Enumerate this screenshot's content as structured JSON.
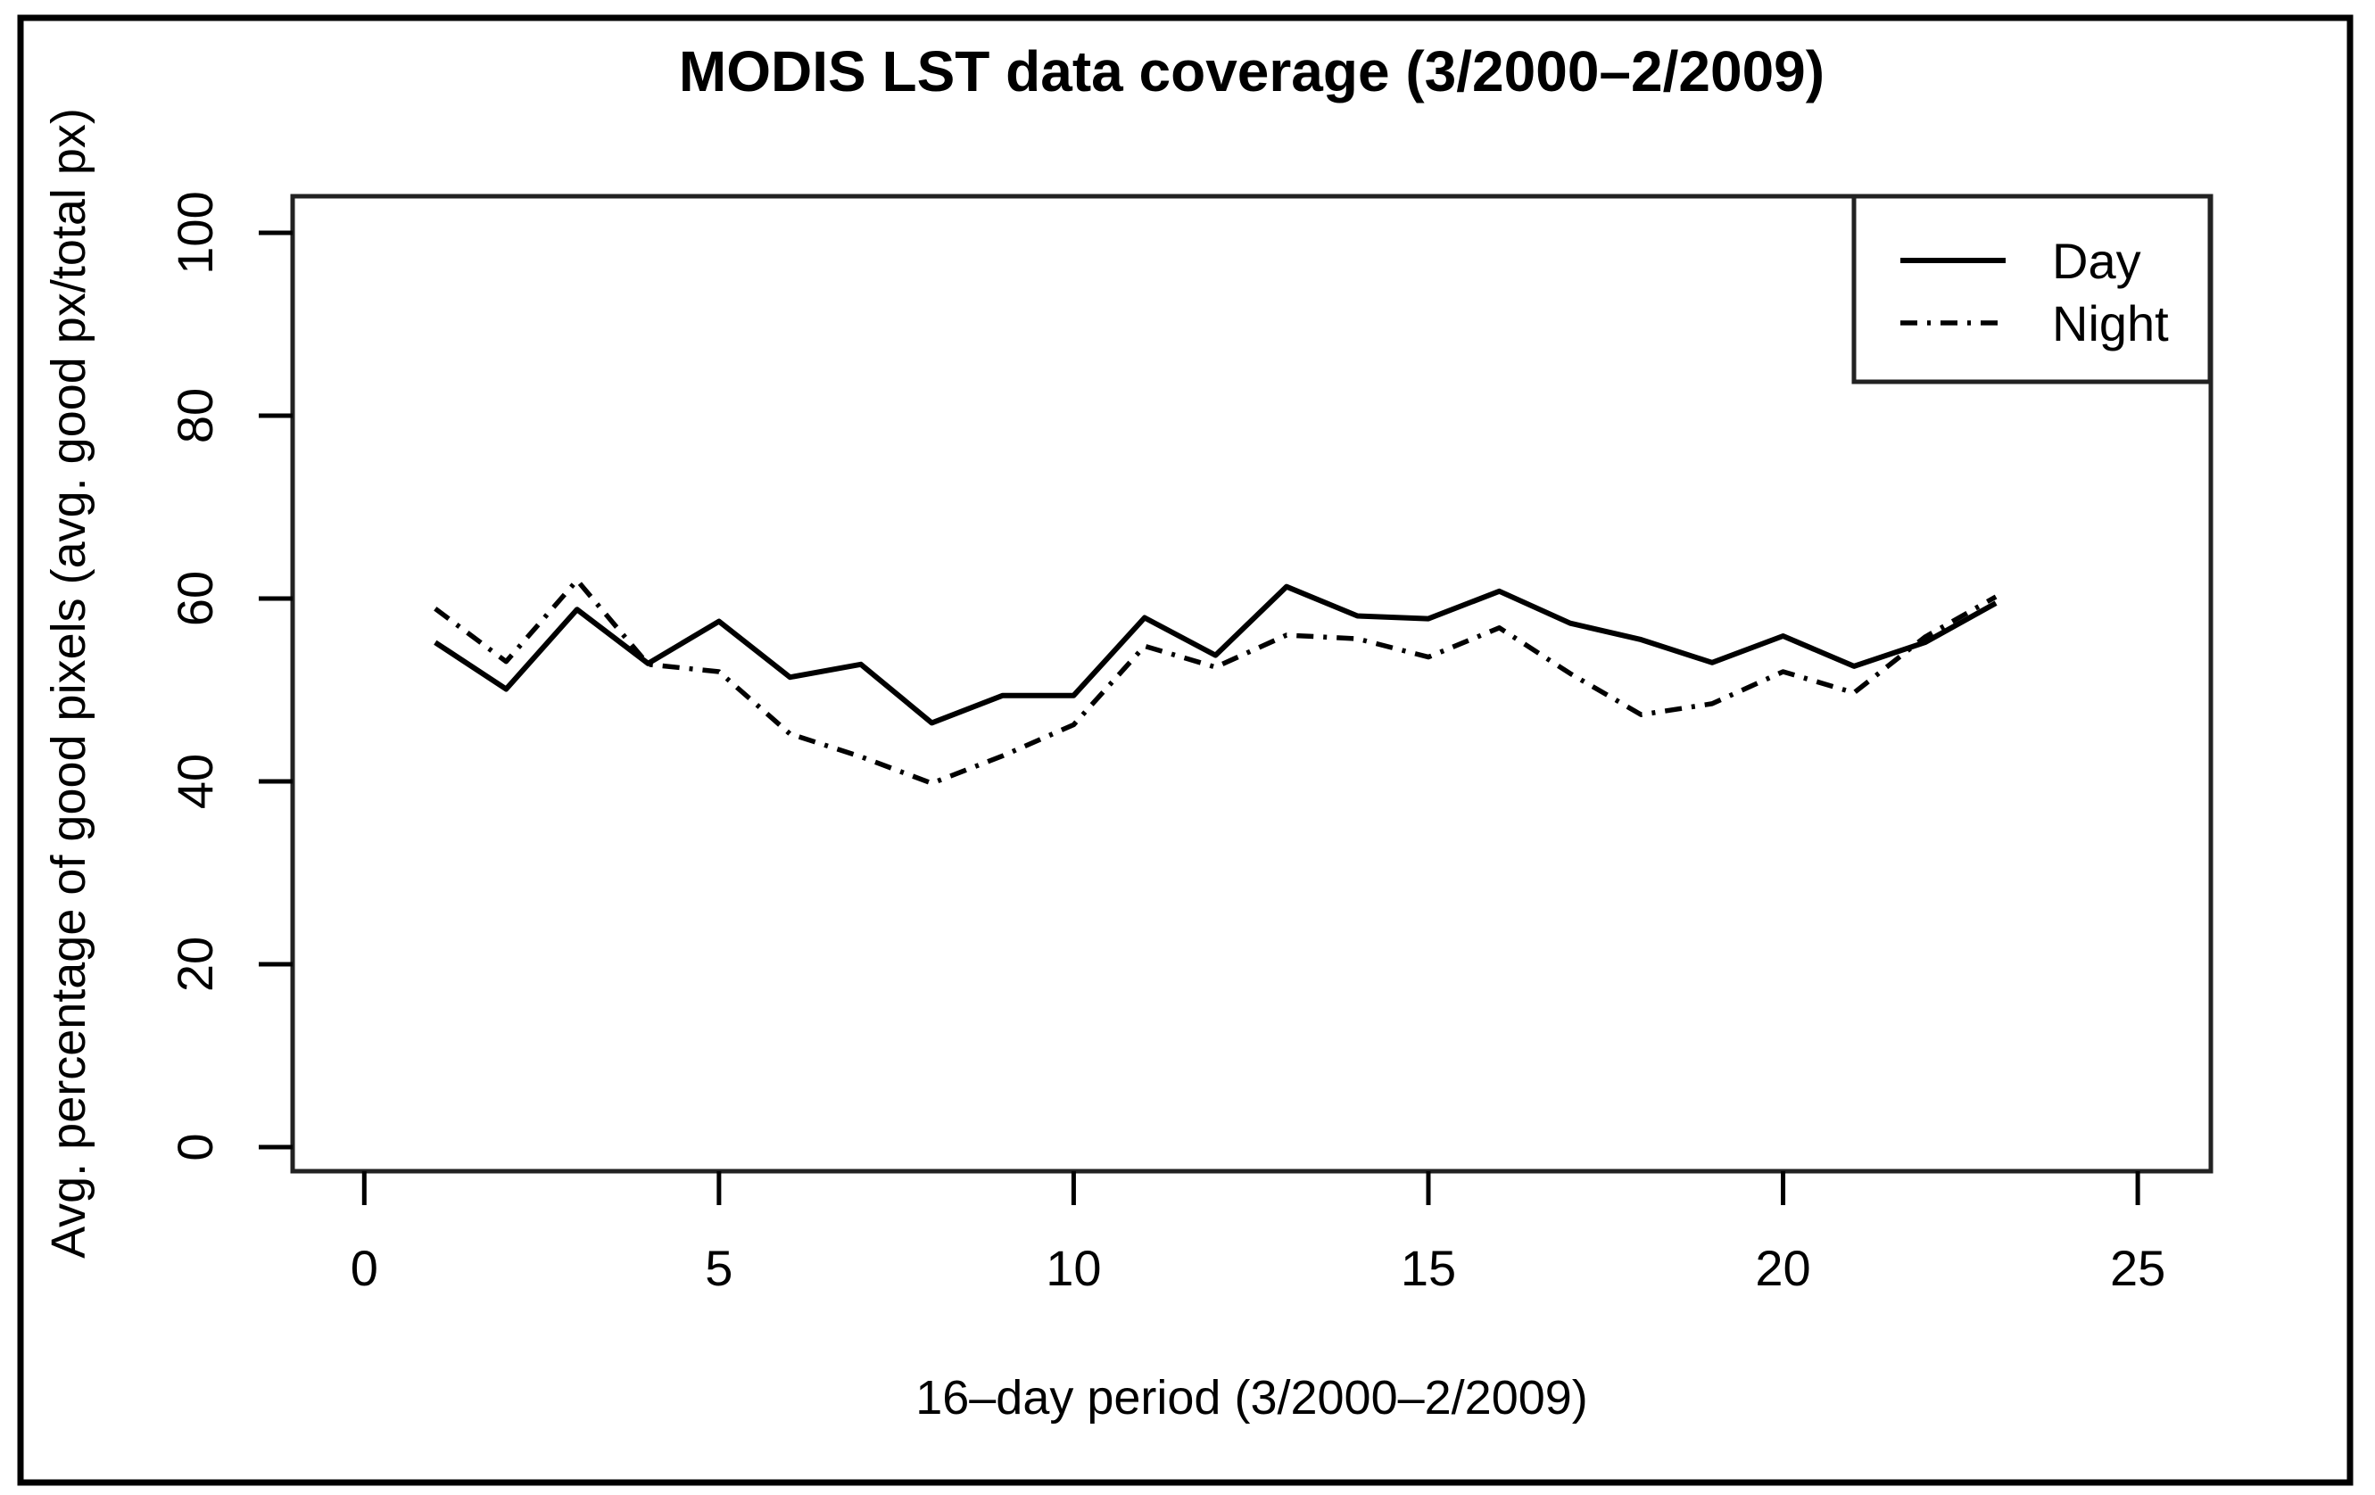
{
  "figure": {
    "background": "#ffffff",
    "frame_color": "#000000",
    "plot_border_color": "#222222"
  },
  "chart_data": {
    "type": "line",
    "title": "MODIS LST data coverage (3/2000–2/2009)",
    "xlabel": "16–day period (3/2000–2/2009)",
    "ylabel": "Avg. percentage of good pixels (avg. good px/total px)",
    "xlim": [
      0,
      25
    ],
    "ylim": [
      0,
      100
    ],
    "x_ticks": [
      0,
      5,
      10,
      15,
      20,
      25
    ],
    "y_ticks": [
      0,
      20,
      40,
      60,
      80,
      100
    ],
    "grid": false,
    "legend_position": "top-right",
    "x": [
      1,
      2,
      3,
      4,
      5,
      6,
      7,
      8,
      9,
      10,
      11,
      12,
      13,
      14,
      15,
      16,
      17,
      18,
      19,
      20,
      21,
      22,
      23
    ],
    "series": [
      {
        "name": "Day",
        "style": "solid",
        "color": "#000000",
        "values": [
          55.2,
          50.1,
          58.8,
          52.9,
          57.5,
          51.4,
          52.8,
          46.4,
          49.4,
          49.4,
          57.9,
          53.8,
          61.3,
          58.1,
          57.8,
          60.8,
          57.3,
          55.5,
          53.0,
          55.9,
          52.6,
          55.2,
          59.5
        ]
      },
      {
        "name": "Night",
        "style": "dashdot",
        "color": "#000000",
        "values": [
          58.9,
          53.1,
          62.0,
          52.8,
          52.0,
          45.2,
          42.7,
          39.8,
          42.8,
          46.2,
          54.8,
          52.5,
          56.0,
          55.6,
          53.6,
          56.8,
          51.8,
          47.3,
          48.5,
          52.0,
          49.7,
          55.8,
          60.2
        ]
      }
    ]
  }
}
